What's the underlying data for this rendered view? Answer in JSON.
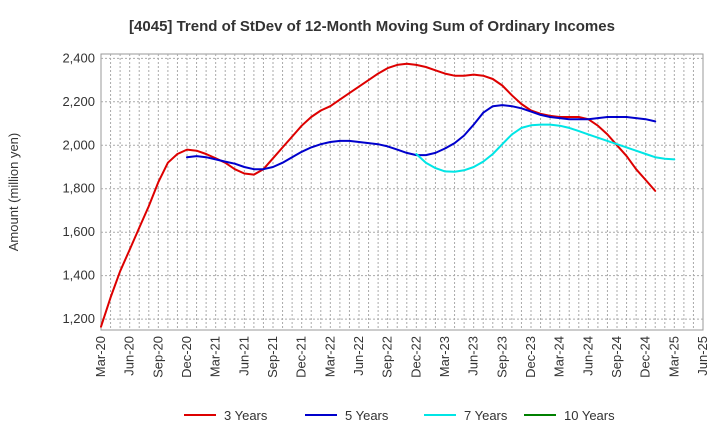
{
  "chart_data": {
    "type": "line",
    "title": "[4045]  Trend of StDev of 12-Month Moving Sum of Ordinary Incomes",
    "xlabel": "",
    "ylabel": "Amount (million yen)",
    "ylim": [
      1150,
      2420
    ],
    "yticks": [
      1200,
      1400,
      1600,
      1800,
      2000,
      2200,
      2400
    ],
    "ytick_labels": [
      "1,200",
      "1,400",
      "1,600",
      "1,800",
      "2,000",
      "2,200",
      "2,400"
    ],
    "x_start": "Mar-20",
    "num_months": 63,
    "xtick_labels": [
      "Mar-20",
      "Jun-20",
      "Sep-20",
      "Dec-20",
      "Mar-21",
      "Jun-21",
      "Sep-21",
      "Dec-21",
      "Mar-22",
      "Jun-22",
      "Sep-22",
      "Dec-22",
      "Mar-23",
      "Jun-23",
      "Sep-23",
      "Dec-23",
      "Mar-24",
      "Jun-24",
      "Sep-24",
      "Dec-24",
      "Mar-25",
      "Jun-25"
    ],
    "grid": true,
    "legend_position": "bottom",
    "series": [
      {
        "name": "3 Years",
        "color": "#dd0000",
        "start_index": 0,
        "values": [
          1165,
          1300,
          1420,
          1520,
          1620,
          1720,
          1830,
          1920,
          1960,
          1980,
          1975,
          1960,
          1940,
          1920,
          1890,
          1870,
          1865,
          1890,
          1940,
          1990,
          2040,
          2090,
          2130,
          2160,
          2180,
          2210,
          2240,
          2270,
          2300,
          2330,
          2355,
          2370,
          2375,
          2370,
          2360,
          2345,
          2330,
          2320,
          2320,
          2325,
          2320,
          2305,
          2275,
          2230,
          2190,
          2160,
          2145,
          2135,
          2130,
          2130,
          2130,
          2120,
          2090,
          2050,
          2000,
          1950,
          1890,
          1840,
          1790
        ]
      },
      {
        "name": "5 Years",
        "color": "#0000cc",
        "start_index": 9,
        "values": [
          1945,
          1950,
          1945,
          1935,
          1925,
          1915,
          1900,
          1890,
          1890,
          1900,
          1920,
          1945,
          1970,
          1990,
          2005,
          2015,
          2020,
          2020,
          2015,
          2010,
          2005,
          1995,
          1980,
          1965,
          1955,
          1955,
          1965,
          1985,
          2010,
          2045,
          2095,
          2150,
          2180,
          2185,
          2180,
          2170,
          2155,
          2140,
          2130,
          2125,
          2120,
          2120,
          2120,
          2125,
          2130,
          2130,
          2130,
          2125,
          2120,
          2110
        ]
      },
      {
        "name": "7 Years",
        "color": "#00e5e5",
        "start_index": 33,
        "values": [
          1960,
          1920,
          1895,
          1880,
          1878,
          1885,
          1900,
          1925,
          1960,
          2005,
          2050,
          2080,
          2092,
          2095,
          2095,
          2090,
          2080,
          2065,
          2050,
          2035,
          2020,
          2005,
          1990,
          1975,
          1960,
          1945,
          1938,
          1935
        ]
      },
      {
        "name": "10 Years",
        "color": "#008000",
        "start_index": 0,
        "values": []
      }
    ]
  }
}
